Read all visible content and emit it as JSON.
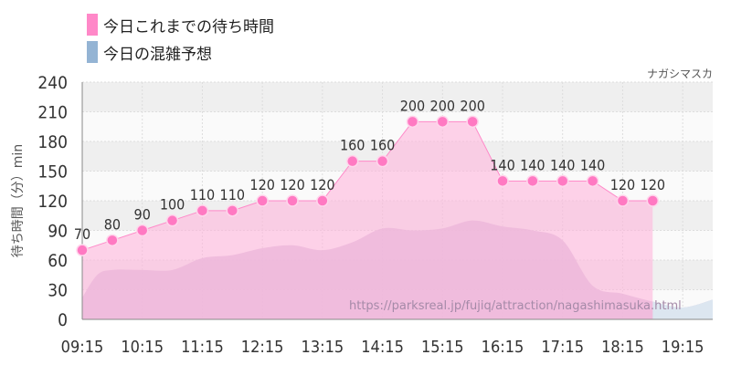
{
  "legend": {
    "items": [
      {
        "label": "今日これまでの待ち時間",
        "color": "#ff88c8"
      },
      {
        "label": "今日の混雑予想",
        "color": "#94b4d4"
      }
    ]
  },
  "source_label": "ナガシマスカ",
  "watermark": "https://parksreal.jp/fujiq/attraction/nagashimasuka.html",
  "colors": {
    "wait_fill": "#ffb6dc",
    "wait_line": "#ff88c8",
    "wait_marker": "#ff79c2",
    "forecast_fill": "#d3bcd9",
    "forecast_fill_outside": "#dce6f0",
    "band_dark": "#efefef",
    "band_light": "#fafafa"
  },
  "chart_data": {
    "type": "area",
    "ylabel": "待ち時間（分）min",
    "ylim": [
      0,
      240
    ],
    "yticks": [
      0,
      30,
      60,
      90,
      120,
      150,
      180,
      210,
      240
    ],
    "xticks": [
      "09:15",
      "10:15",
      "11:15",
      "12:15",
      "13:15",
      "14:15",
      "15:15",
      "16:15",
      "17:15",
      "18:15",
      "19:15"
    ],
    "x_range": [
      "09:15",
      "19:45"
    ],
    "grid": true,
    "series": [
      {
        "name": "今日これまでの待ち時間",
        "x": [
          "09:15",
          "09:45",
          "10:15",
          "10:45",
          "11:15",
          "11:45",
          "12:15",
          "12:45",
          "13:15",
          "13:45",
          "14:15",
          "14:45",
          "15:15",
          "15:45",
          "16:15",
          "16:45",
          "17:15",
          "17:45",
          "18:15",
          "18:45"
        ],
        "values": [
          70,
          80,
          90,
          100,
          110,
          110,
          120,
          120,
          120,
          160,
          160,
          200,
          200,
          200,
          140,
          140,
          140,
          140,
          120,
          120
        ],
        "data_labels": true
      },
      {
        "name": "今日の混雑予想",
        "x": [
          "09:15",
          "09:30",
          "09:45",
          "10:15",
          "10:45",
          "11:15",
          "11:45",
          "12:15",
          "12:45",
          "13:15",
          "13:45",
          "14:15",
          "14:45",
          "15:15",
          "15:45",
          "16:15",
          "16:45",
          "17:15",
          "17:45",
          "18:15",
          "18:45",
          "19:15",
          "19:45"
        ],
        "values": [
          22,
          45,
          50,
          50,
          50,
          62,
          65,
          72,
          75,
          70,
          78,
          92,
          90,
          92,
          100,
          94,
          90,
          80,
          34,
          26,
          18,
          12,
          20
        ]
      }
    ]
  }
}
